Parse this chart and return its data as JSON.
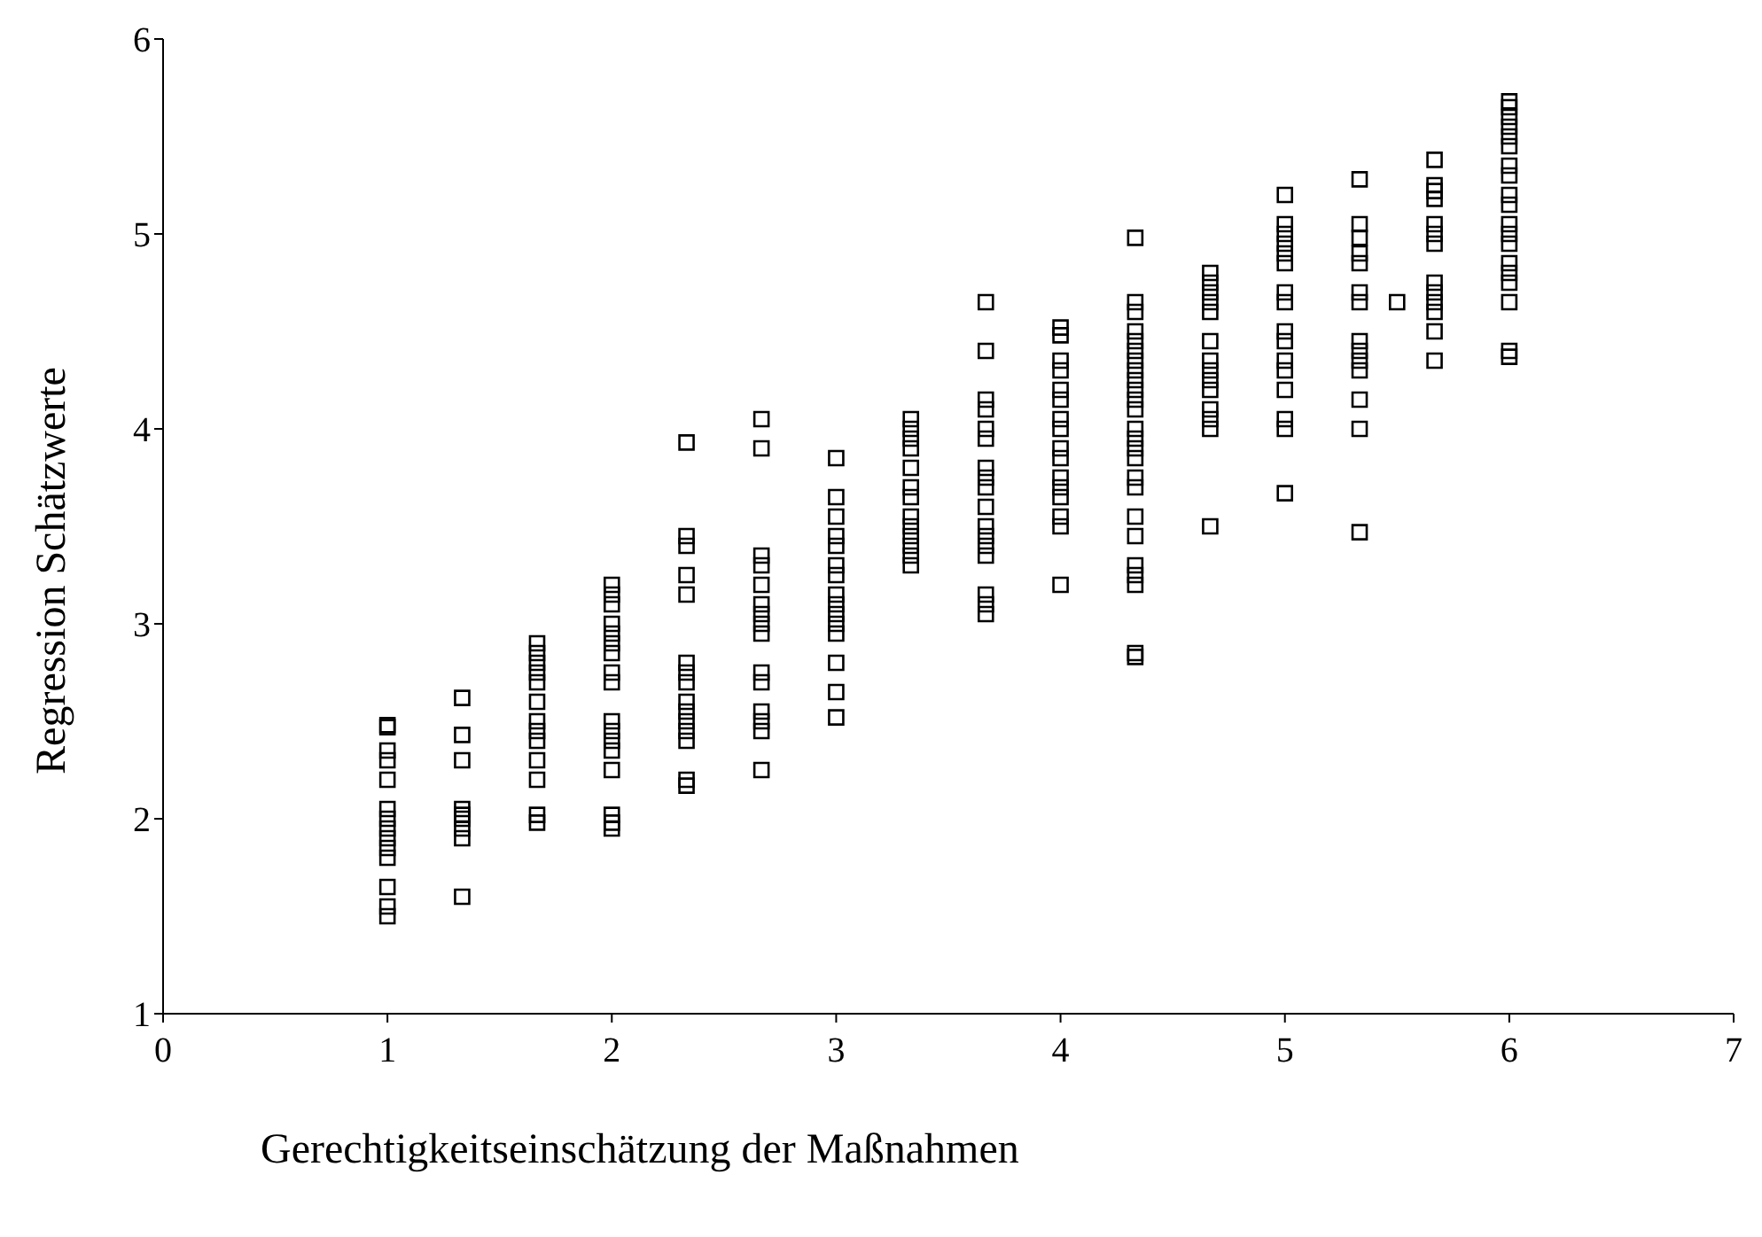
{
  "chart_data": {
    "type": "scatter",
    "xlabel": "Gerechtigkeitseinschätzung der Maßnahmen",
    "ylabel": "Regression Schätzwerte",
    "xlim": [
      0,
      7
    ],
    "xticks": [
      0,
      1,
      2,
      3,
      4,
      5,
      6,
      7
    ],
    "ylim": [
      1,
      6
    ],
    "yticks": [
      1,
      2,
      3,
      4,
      5,
      6
    ],
    "marker": "square",
    "series": [
      {
        "color": "#000000",
        "x": [
          1,
          1,
          1,
          1,
          1,
          1,
          1,
          1,
          1,
          1,
          1,
          1,
          1,
          1,
          1.333,
          1.333,
          1.333,
          1.333,
          1.333,
          1.333,
          1.333,
          1.333,
          1.333,
          1.667,
          1.667,
          1.667,
          1.667,
          1.667,
          1.667,
          1.667,
          1.667,
          1.667,
          1.667,
          1.667,
          1.667,
          1.667,
          2,
          2,
          2,
          2,
          2,
          2,
          2,
          2,
          2,
          2,
          2,
          2,
          2,
          2,
          2,
          2,
          2,
          2.333,
          2.333,
          2.333,
          2.333,
          2.333,
          2.333,
          2.333,
          2.333,
          2.333,
          2.333,
          2.333,
          2.333,
          2.333,
          2.333,
          2.333,
          2.667,
          2.667,
          2.667,
          2.667,
          2.667,
          2.667,
          2.667,
          2.667,
          2.667,
          2.667,
          2.667,
          2.667,
          2.667,
          2.667,
          2.667,
          3,
          3,
          3,
          3,
          3,
          3,
          3,
          3,
          3,
          3,
          3,
          3,
          3,
          3,
          3,
          3.333,
          3.333,
          3.333,
          3.333,
          3.333,
          3.333,
          3.333,
          3.333,
          3.333,
          3.333,
          3.333,
          3.333,
          3.333,
          3.667,
          3.667,
          3.667,
          3.667,
          3.667,
          3.667,
          3.667,
          3.667,
          3.667,
          3.667,
          3.667,
          3.667,
          3.667,
          3.667,
          3.667,
          3.667,
          3.667,
          4,
          4,
          4,
          4,
          4,
          4,
          4,
          4,
          4,
          4,
          4,
          4,
          4,
          4,
          4,
          4,
          4.333,
          4.333,
          4.333,
          4.333,
          4.333,
          4.333,
          4.333,
          4.333,
          4.333,
          4.333,
          4.333,
          4.333,
          4.333,
          4.333,
          4.333,
          4.333,
          4.333,
          4.333,
          4.333,
          4.333,
          4.333,
          4.333,
          4.333,
          4.333,
          4.333,
          4.667,
          4.667,
          4.667,
          4.667,
          4.667,
          4.667,
          4.667,
          4.667,
          4.667,
          4.667,
          4.667,
          4.667,
          4.667,
          4.667,
          5,
          5,
          5,
          5,
          5,
          5,
          5,
          5,
          5,
          5,
          5,
          5,
          5,
          5,
          5,
          5,
          5.333,
          5.333,
          5.333,
          5.333,
          5.333,
          5.333,
          5.333,
          5.333,
          5.333,
          5.333,
          5.333,
          5.333,
          5.333,
          5.333,
          5.5,
          5.667,
          5.667,
          5.667,
          5.667,
          5.667,
          5.667,
          5.667,
          5.667,
          5.667,
          5.667,
          5.667,
          5.667,
          5.667,
          6,
          6,
          6,
          6,
          6,
          6,
          6,
          6,
          6,
          6,
          6,
          6,
          6,
          6,
          6,
          6,
          6,
          6,
          6
        ],
        "values": [
          2.48,
          2.47,
          2.35,
          2.3,
          2.2,
          2.05,
          2.0,
          1.95,
          1.9,
          1.85,
          1.8,
          1.65,
          1.55,
          1.5,
          2.62,
          2.43,
          2.3,
          2.05,
          2.02,
          2.0,
          1.95,
          1.9,
          1.6,
          2.9,
          2.85,
          2.8,
          2.75,
          2.7,
          2.6,
          2.5,
          2.45,
          2.4,
          2.3,
          2.2,
          2.02,
          1.98,
          3.2,
          3.15,
          3.1,
          3.0,
          2.95,
          2.9,
          2.85,
          2.75,
          2.7,
          2.5,
          2.45,
          2.4,
          2.35,
          2.25,
          2.02,
          1.98,
          1.95,
          3.93,
          3.45,
          3.4,
          3.25,
          3.15,
          2.8,
          2.75,
          2.7,
          2.6,
          2.55,
          2.5,
          2.45,
          2.4,
          2.2,
          2.17,
          4.05,
          3.9,
          3.35,
          3.3,
          3.2,
          3.1,
          3.05,
          3.0,
          2.95,
          2.75,
          2.7,
          2.55,
          2.5,
          2.45,
          2.25,
          3.85,
          3.65,
          3.55,
          3.45,
          3.4,
          3.3,
          3.25,
          3.15,
          3.1,
          3.05,
          3.0,
          2.95,
          2.8,
          2.65,
          2.52,
          4.05,
          4.0,
          3.95,
          3.9,
          3.8,
          3.7,
          3.65,
          3.55,
          3.5,
          3.45,
          3.4,
          3.35,
          3.3,
          4.65,
          4.4,
          4.15,
          4.1,
          4.0,
          3.95,
          3.8,
          3.75,
          3.7,
          3.6,
          3.5,
          3.45,
          3.4,
          3.35,
          3.15,
          3.1,
          3.05,
          4.52,
          4.48,
          4.35,
          4.3,
          4.2,
          4.15,
          4.05,
          4.0,
          3.9,
          3.85,
          3.75,
          3.7,
          3.65,
          3.55,
          3.5,
          3.2,
          4.98,
          4.65,
          4.6,
          4.5,
          4.45,
          4.4,
          4.35,
          4.3,
          4.25,
          4.2,
          4.15,
          4.1,
          4.0,
          3.95,
          3.9,
          3.85,
          3.75,
          3.7,
          3.55,
          3.45,
          3.3,
          3.25,
          3.2,
          2.85,
          2.83,
          4.8,
          4.75,
          4.7,
          4.65,
          4.6,
          4.45,
          4.35,
          4.3,
          4.25,
          4.2,
          4.1,
          4.05,
          4.0,
          3.5,
          5.2,
          5.05,
          5.0,
          4.95,
          4.9,
          4.85,
          4.7,
          4.65,
          4.5,
          4.45,
          4.35,
          4.3,
          4.2,
          4.05,
          4.0,
          3.67,
          5.28,
          5.05,
          4.98,
          4.9,
          4.85,
          4.7,
          4.65,
          4.45,
          4.4,
          4.35,
          4.3,
          4.15,
          4.0,
          3.47,
          4.65,
          5.38,
          5.25,
          5.22,
          5.18,
          5.05,
          5.0,
          4.95,
          4.75,
          4.7,
          4.65,
          4.6,
          4.5,
          4.35,
          5.68,
          5.65,
          5.6,
          5.55,
          5.5,
          5.45,
          5.35,
          5.3,
          5.2,
          5.15,
          5.05,
          5.0,
          4.95,
          4.85,
          4.8,
          4.75,
          4.65,
          4.4,
          4.37
        ]
      }
    ]
  }
}
